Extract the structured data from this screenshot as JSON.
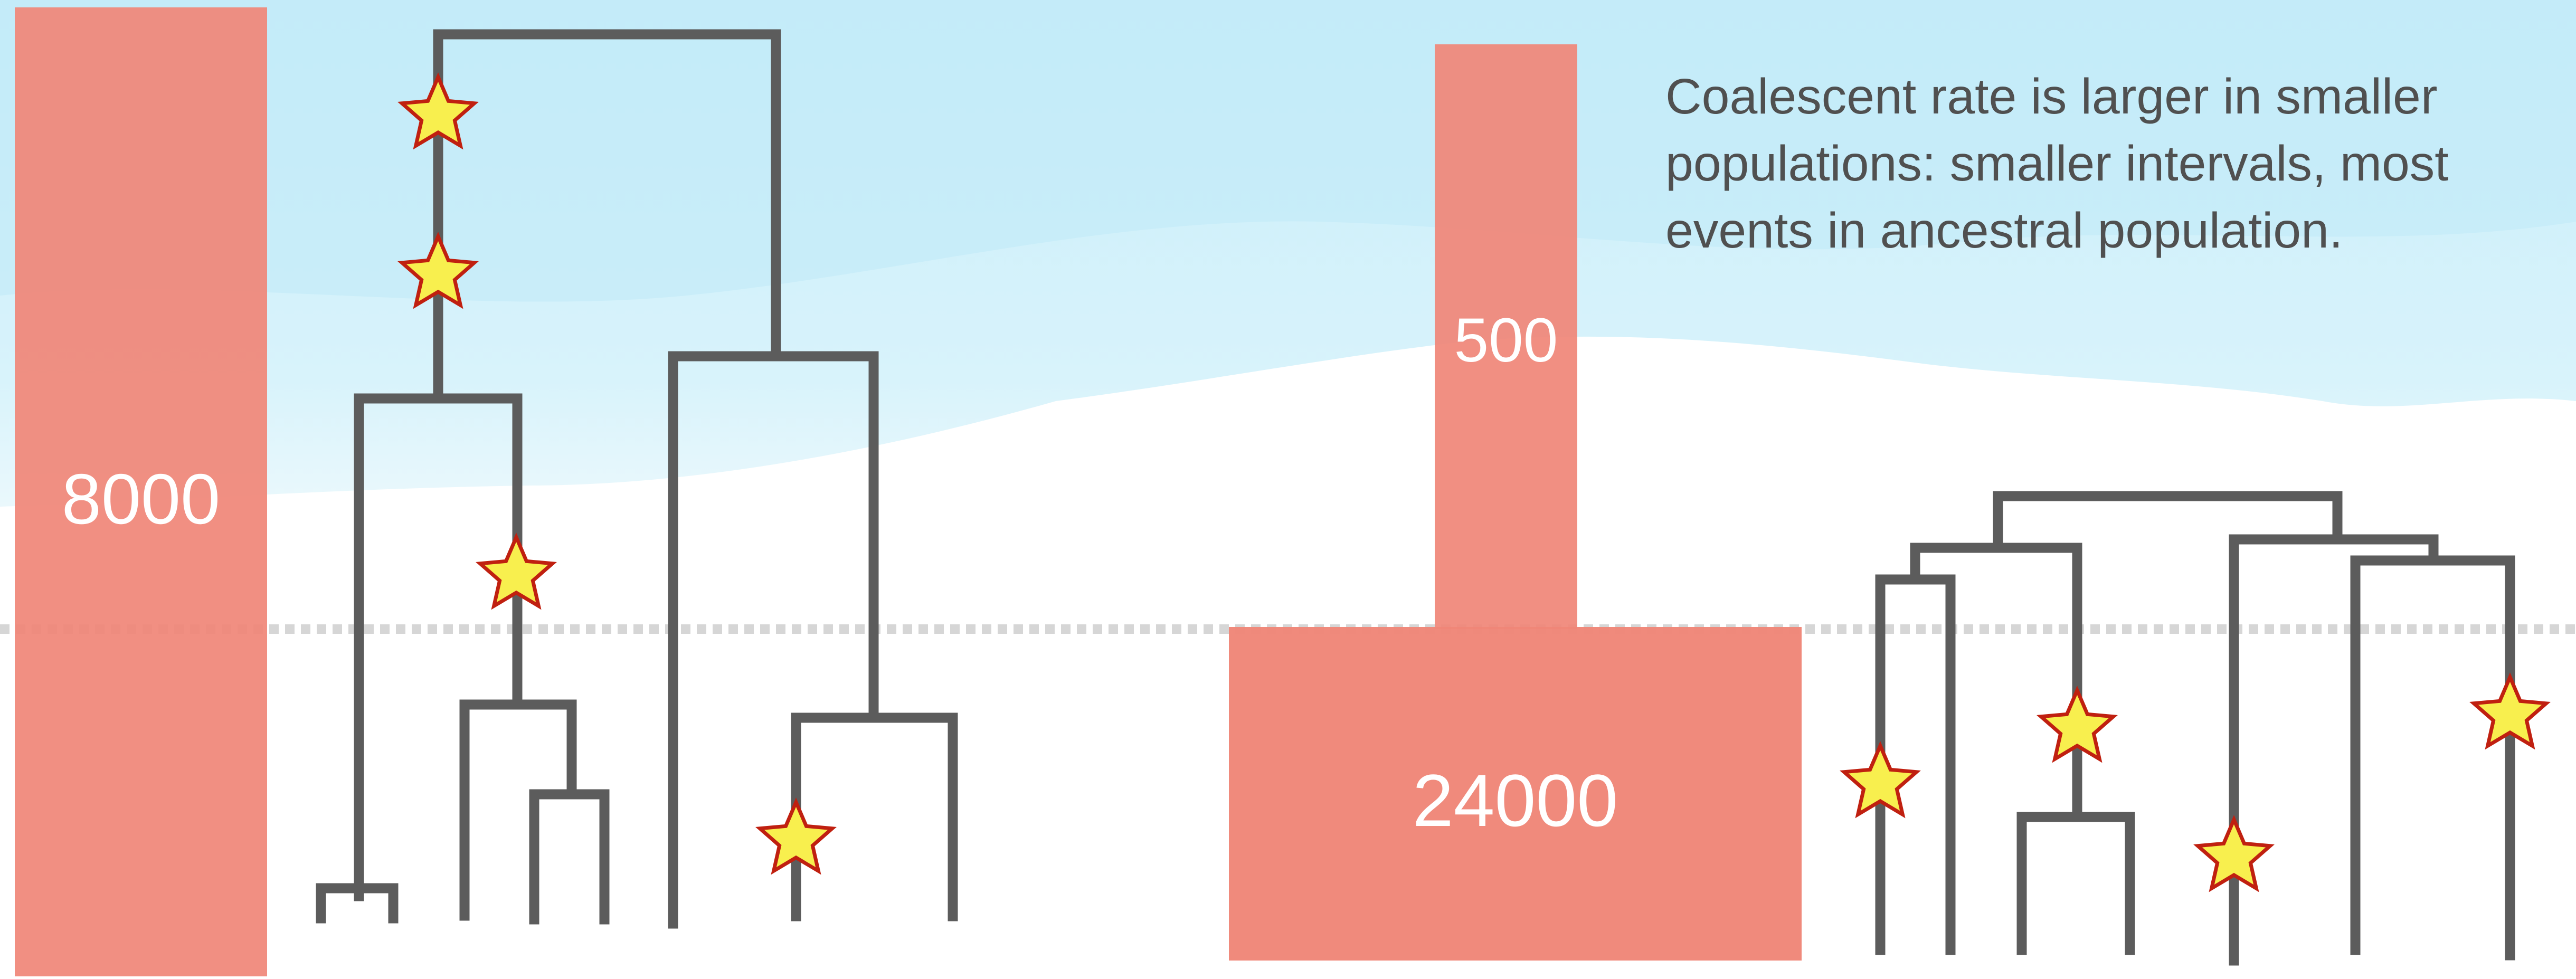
{
  "caption": "Coalescent rate is larger in smaller populations: smaller intervals, most events in ancestral population.",
  "populations": {
    "left": {
      "label": "8000"
    },
    "right_ancestral": {
      "label": "500"
    },
    "right_recent": {
      "label": "24000"
    }
  },
  "colors": {
    "population_bar": "#f08678",
    "tree_branch": "#5c5c5c",
    "mutation_star_fill": "#f8ef4e",
    "mutation_star_stroke": "#c02010",
    "sky": "#d0f0fa",
    "divider": "#d6d6d6"
  },
  "icons": {
    "mutation": "star-icon"
  }
}
